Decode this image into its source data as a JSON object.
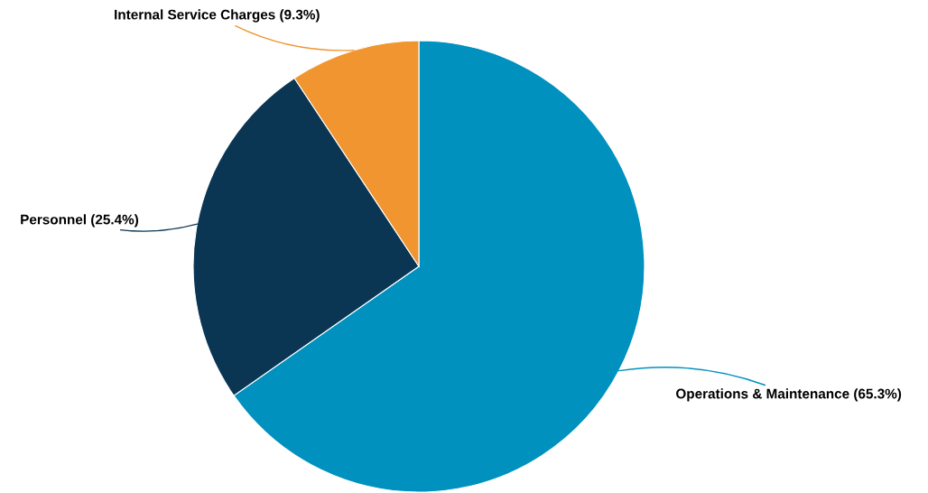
{
  "chart_data": {
    "type": "pie",
    "categories": [
      "Operations & Maintenance",
      "Personnel",
      "Internal Service Charges"
    ],
    "values": [
      65.3,
      25.4,
      9.3
    ],
    "colors": [
      "#0091bf",
      "#0a3654",
      "#f0952f"
    ],
    "value_labels": [
      "(65.3%)",
      "(25.4%)",
      "(9.3%)"
    ],
    "legend": false
  }
}
